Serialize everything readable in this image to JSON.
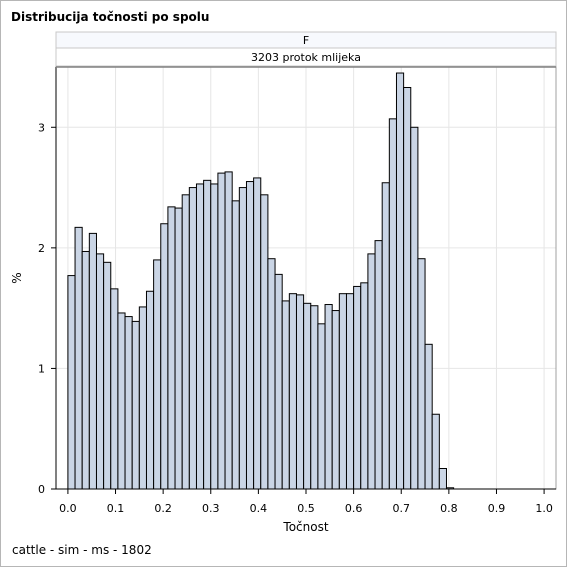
{
  "title": "Distribucija točnosti po spolu",
  "footnote": "cattle - sim - ms - 1802",
  "panel": {
    "strip_top": "F",
    "strip_bottom": "3203 protok mlijeka"
  },
  "colors": {
    "bar_fill": "#cad5e5",
    "bar_stroke": "#000000",
    "grid": "#e6e6e6",
    "strip_top_fill": "#f7f9fd",
    "strip_bottom_fill": "#ffffff",
    "frame": "#a0a0a0"
  },
  "chart_data": {
    "type": "bar",
    "subtype": "histogram",
    "xlabel": "Točnost",
    "ylabel": "%",
    "xlim": [
      -0.025,
      1.025
    ],
    "ylim": [
      0,
      3.5
    ],
    "x_ticks": [
      "0.0",
      "0.1",
      "0.2",
      "0.3",
      "0.4",
      "0.5",
      "0.6",
      "0.7",
      "0.8",
      "0.9",
      "1.0"
    ],
    "x_tick_values": [
      0,
      0.1,
      0.2,
      0.3,
      0.4,
      0.5,
      0.6,
      0.7,
      0.8,
      0.9,
      1.0
    ],
    "y_ticks": [
      "0",
      "1",
      "2",
      "3"
    ],
    "y_tick_values": [
      0,
      1,
      2,
      3
    ],
    "grid": true,
    "bin_width": 0.015,
    "bin_start": 0.0,
    "values": [
      1.77,
      2.17,
      1.97,
      2.12,
      1.95,
      1.88,
      1.66,
      1.46,
      1.43,
      1.39,
      1.51,
      1.64,
      1.9,
      2.2,
      2.34,
      2.33,
      2.44,
      2.5,
      2.53,
      2.56,
      2.53,
      2.62,
      2.63,
      2.39,
      2.5,
      2.55,
      2.58,
      2.44,
      1.91,
      1.78,
      1.56,
      1.62,
      1.61,
      1.54,
      1.52,
      1.37,
      1.53,
      1.48,
      1.62,
      1.62,
      1.68,
      1.71,
      1.95,
      2.06,
      2.54,
      3.07,
      3.45,
      3.33,
      3.0,
      1.91,
      1.2,
      0.62,
      0.17,
      0.01
    ]
  }
}
